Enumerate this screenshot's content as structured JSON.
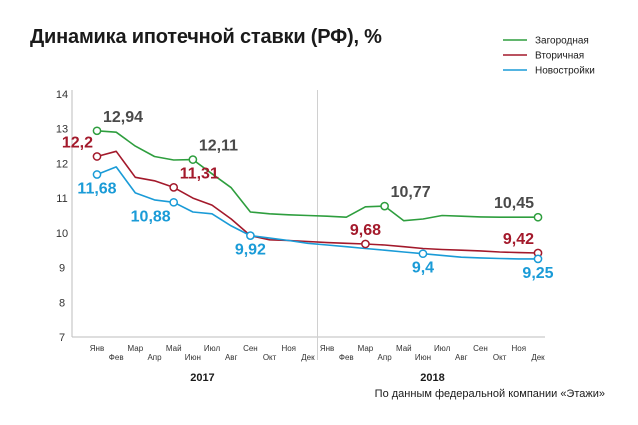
{
  "title": "Динамика ипотечной ставки (РФ), %",
  "source": "По данным федеральной компании «Этажи»",
  "chart_data": {
    "type": "line",
    "title": "Динамика ипотечной ставки (РФ), %",
    "ylim": [
      7,
      14
    ],
    "yticks": [
      7,
      8,
      9,
      10,
      11,
      12,
      13,
      14
    ],
    "categories": [
      "Янв",
      "Фев",
      "Мар",
      "Апр",
      "Май",
      "Июн",
      "Июл",
      "Авг",
      "Сен",
      "Окт",
      "Ноя",
      "Дек",
      "Янв",
      "Фев",
      "Мар",
      "Апр",
      "Май",
      "Июн",
      "Июл",
      "Авг",
      "Сен",
      "Окт",
      "Ноя",
      "Дек"
    ],
    "years": [
      {
        "label": "2017",
        "from": 0,
        "to": 11
      },
      {
        "label": "2018",
        "from": 12,
        "to": 23
      }
    ],
    "legend_position": "top-right",
    "series": [
      {
        "name": "Загородная",
        "color": "#2e9e3e",
        "values": [
          12.94,
          12.9,
          12.5,
          12.2,
          12.1,
          12.11,
          11.7,
          11.3,
          10.6,
          10.55,
          10.52,
          10.5,
          10.48,
          10.45,
          10.75,
          10.77,
          10.35,
          10.4,
          10.5,
          10.48,
          10.46,
          10.45,
          10.45,
          10.45
        ],
        "markers": [
          0,
          5,
          15,
          23
        ],
        "labels": [
          {
            "index": 0,
            "text": "12,94",
            "pos": "above-right"
          },
          {
            "index": 5,
            "text": "12,11",
            "pos": "above-right"
          },
          {
            "index": 15,
            "text": "10,77",
            "pos": "above-right"
          },
          {
            "index": 23,
            "text": "10,45",
            "pos": "above-left"
          }
        ]
      },
      {
        "name": "Вторичная",
        "color": "#a3192b",
        "values": [
          12.2,
          12.35,
          11.6,
          11.5,
          11.31,
          11.0,
          10.8,
          10.4,
          9.92,
          9.8,
          9.78,
          9.75,
          9.72,
          9.7,
          9.68,
          9.65,
          9.6,
          9.55,
          9.52,
          9.5,
          9.48,
          9.45,
          9.43,
          9.42
        ],
        "markers": [
          0,
          4,
          14,
          23
        ],
        "labels": [
          {
            "index": 0,
            "text": "12,2",
            "pos": "above-left"
          },
          {
            "index": 4,
            "text": "11,31",
            "pos": "above-right"
          },
          {
            "index": 14,
            "text": "9,68",
            "pos": "above"
          },
          {
            "index": 23,
            "text": "9,42",
            "pos": "above-left"
          }
        ]
      },
      {
        "name": "Новостройки",
        "color": "#1a9bd7",
        "values": [
          11.68,
          11.9,
          11.15,
          10.95,
          10.88,
          10.6,
          10.55,
          10.2,
          9.92,
          9.85,
          9.78,
          9.7,
          9.65,
          9.6,
          9.55,
          9.5,
          9.45,
          9.4,
          9.35,
          9.3,
          9.28,
          9.26,
          9.25,
          9.25
        ],
        "markers": [
          0,
          4,
          8,
          17,
          23
        ],
        "labels": [
          {
            "index": 0,
            "text": "11,68",
            "pos": "below"
          },
          {
            "index": 4,
            "text": "10,88",
            "pos": "below-left"
          },
          {
            "index": 8,
            "text": "9,92",
            "pos": "below"
          },
          {
            "index": 17,
            "text": "9,4",
            "pos": "below"
          },
          {
            "index": 23,
            "text": "9,25",
            "pos": "below"
          }
        ]
      }
    ]
  }
}
